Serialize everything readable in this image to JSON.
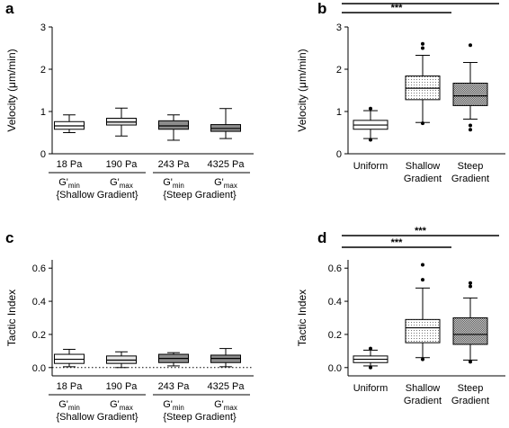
{
  "chart_data": [
    {
      "panel": "a",
      "type": "box",
      "ylabel": "Velocity (μm/min)",
      "ylim": [
        0,
        3
      ],
      "yticks": [
        "0",
        "1",
        "2",
        "3"
      ],
      "categories": [
        "18 Pa",
        "190 Pa",
        "243 Pa",
        "4325 Pa"
      ],
      "fills": [
        "#ffffff",
        "#e6e6e6",
        "#8c8c8c",
        "#8c8c8c"
      ],
      "boxes": [
        {
          "whisker_low": 0.5,
          "q1": 0.58,
          "median": 0.66,
          "q3": 0.76,
          "whisker_high": 0.92
        },
        {
          "whisker_low": 0.42,
          "q1": 0.68,
          "median": 0.75,
          "q3": 0.84,
          "whisker_high": 1.08
        },
        {
          "whisker_low": 0.32,
          "q1": 0.58,
          "median": 0.66,
          "q3": 0.78,
          "whisker_high": 0.92
        },
        {
          "whisker_low": 0.36,
          "q1": 0.53,
          "median": 0.6,
          "q3": 0.69,
          "whisker_high": 1.07
        }
      ],
      "group_labels": [
        {
          "g": "G'",
          "sub": "min"
        },
        {
          "g": "G'",
          "sub": "max"
        },
        {
          "g": "G'",
          "sub": "min"
        },
        {
          "g": "G'",
          "sub": "max"
        }
      ],
      "groups": [
        "{Shallow Gradient}",
        "{Steep Gradient}"
      ]
    },
    {
      "panel": "b",
      "type": "box",
      "ylabel": "Velocity (μm/min)",
      "ylim": [
        0,
        3
      ],
      "yticks": [
        "0",
        "1",
        "2",
        "3"
      ],
      "categories": [
        [
          "Uniform"
        ],
        [
          "Shallow",
          "Gradient"
        ],
        [
          "Steep",
          "Gradient"
        ]
      ],
      "fills": [
        "#ffffff",
        "#e8e8e8",
        "#9a9a9a"
      ],
      "boxes": [
        {
          "whisker_low": 0.36,
          "q1": 0.58,
          "median": 0.68,
          "q3": 0.79,
          "whisker_high": 1.02,
          "outliers": [
            1.07,
            0.33
          ]
        },
        {
          "whisker_low": 0.74,
          "q1": 1.28,
          "median": 1.55,
          "q3": 1.84,
          "whisker_high": 2.33,
          "outliers": [
            2.6,
            2.5,
            0.72
          ]
        },
        {
          "whisker_low": 0.82,
          "q1": 1.14,
          "median": 1.37,
          "q3": 1.67,
          "whisker_high": 2.16,
          "outliers": [
            2.57,
            0.67,
            0.57
          ]
        }
      ],
      "significance": [
        {
          "from": 0,
          "to": 1,
          "label": "***"
        },
        {
          "from": 0,
          "to": 2,
          "label": "***"
        }
      ]
    },
    {
      "panel": "c",
      "type": "box",
      "ylabel": "Tactic Index",
      "ylim": [
        -0.05,
        0.65
      ],
      "yticks": [
        "0.0",
        "0.2",
        "0.4",
        "0.6"
      ],
      "zero_line": "dotted",
      "categories": [
        "18 Pa",
        "190 Pa",
        "243 Pa",
        "4325 Pa"
      ],
      "fills": [
        "#ffffff",
        "#e6e6e6",
        "#8c8c8c",
        "#8c8c8c"
      ],
      "boxes": [
        {
          "whisker_low": 0.005,
          "q1": 0.025,
          "median": 0.05,
          "q3": 0.08,
          "whisker_high": 0.11
        },
        {
          "whisker_low": 0.0,
          "q1": 0.025,
          "median": 0.045,
          "q3": 0.07,
          "whisker_high": 0.095
        },
        {
          "whisker_low": 0.01,
          "q1": 0.03,
          "median": 0.055,
          "q3": 0.08,
          "whisker_high": 0.09
        },
        {
          "whisker_low": 0.005,
          "q1": 0.03,
          "median": 0.055,
          "q3": 0.075,
          "whisker_high": 0.115
        }
      ],
      "group_labels": [
        {
          "g": "G'",
          "sub": "min"
        },
        {
          "g": "G'",
          "sub": "max"
        },
        {
          "g": "G'",
          "sub": "min"
        },
        {
          "g": "G'",
          "sub": "max"
        }
      ],
      "groups": [
        "{Shallow Gradient}",
        "{Steep Gradient}"
      ]
    },
    {
      "panel": "d",
      "type": "box",
      "ylabel": "Tactic Index",
      "ylim": [
        -0.05,
        0.65
      ],
      "yticks": [
        "0.0",
        "0.2",
        "0.4",
        "0.6"
      ],
      "categories": [
        [
          "Uniform"
        ],
        [
          "Shallow",
          "Gradient"
        ],
        [
          "Steep",
          "Gradient"
        ]
      ],
      "fills": [
        "#ffffff",
        "#e8e8e8",
        "#9a9a9a"
      ],
      "boxes": [
        {
          "whisker_low": 0.01,
          "q1": 0.03,
          "median": 0.05,
          "q3": 0.07,
          "whisker_high": 0.105,
          "outliers": [
            0.115,
            0.0
          ]
        },
        {
          "whisker_low": 0.06,
          "q1": 0.15,
          "median": 0.24,
          "q3": 0.29,
          "whisker_high": 0.48,
          "outliers": [
            0.62,
            0.53,
            0.05
          ]
        },
        {
          "whisker_low": 0.045,
          "q1": 0.14,
          "median": 0.2,
          "q3": 0.3,
          "whisker_high": 0.42,
          "outliers": [
            0.51,
            0.49,
            0.035
          ]
        }
      ],
      "significance": [
        {
          "from": 0,
          "to": 1,
          "label": "***"
        },
        {
          "from": 0,
          "to": 2,
          "label": "***"
        }
      ]
    }
  ]
}
